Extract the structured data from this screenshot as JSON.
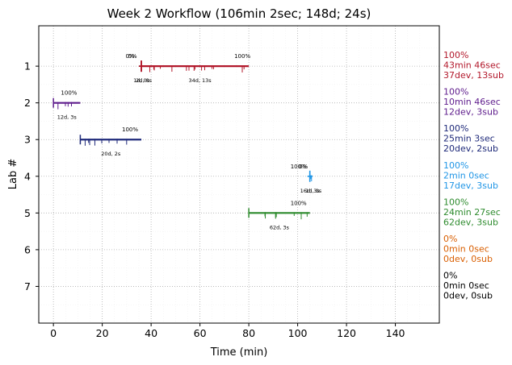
{
  "chart_data": {
    "type": "gantt",
    "title": "Week 2 Workflow (106min 2sec; 148d; 24s)",
    "xlabel": "Time (min)",
    "ylabel": "Lab #",
    "xlim": [
      -6,
      158
    ],
    "ylim": [
      -0.1,
      8.0
    ],
    "xticks": [
      0,
      20,
      40,
      60,
      80,
      100,
      120,
      140
    ],
    "yticks": [
      1,
      2,
      3,
      4,
      5,
      6,
      7
    ],
    "grid": true,
    "y_inverted": true,
    "labs": [
      {
        "lab": 1,
        "color": "#b2182b",
        "segments": [
          {
            "start": 36,
            "end": 36,
            "pct": "0%",
            "dur": "1d, 0s"
          },
          {
            "start": 36,
            "end": 36,
            "pct": "0%",
            "dur": "2d, 0s"
          },
          {
            "start": 36,
            "end": 80,
            "pct": "100%",
            "dur": "34d, 13s"
          }
        ],
        "label": [
          "100%",
          "43min 46sec",
          "37dev, 13sub"
        ]
      },
      {
        "lab": 2,
        "color": "#5e1c8c",
        "segments": [
          {
            "start": 0,
            "end": 11,
            "pct": "100%",
            "dur": "12d, 3s"
          }
        ],
        "label": [
          "100%",
          "10min 46sec",
          "12dev, 3sub"
        ]
      },
      {
        "lab": 3,
        "color": "#1f2a7a",
        "segments": [
          {
            "start": 11,
            "end": 36,
            "pct": "100%",
            "dur": "20d, 2s"
          }
        ],
        "label": [
          "100%",
          "25min 3sec",
          "20dev, 2sub"
        ]
      },
      {
        "lab": 4,
        "color": "#2196e6",
        "segments": [
          {
            "start": 105,
            "end": 105,
            "pct": "100%",
            "dur": "16d, 3s"
          },
          {
            "start": 105,
            "end": 106,
            "pct": "0%",
            "dur": "1d, 0s"
          }
        ],
        "label": [
          "100%",
          "2min 0sec",
          "17dev, 3sub"
        ]
      },
      {
        "lab": 5,
        "color": "#2e8b2e",
        "segments": [
          {
            "start": 80,
            "end": 105,
            "pct": "100%",
            "dur": "62d, 3s"
          }
        ],
        "label": [
          "100%",
          "24min 27sec",
          "62dev, 3sub"
        ]
      },
      {
        "lab": 6,
        "color": "#d95f02",
        "segments": [],
        "label": [
          "0%",
          "0min 0sec",
          "0dev, 0sub"
        ]
      },
      {
        "lab": 7,
        "color": "#000000",
        "segments": [],
        "label": [
          "0%",
          "0min 0sec",
          "0dev, 0sub"
        ]
      }
    ]
  }
}
